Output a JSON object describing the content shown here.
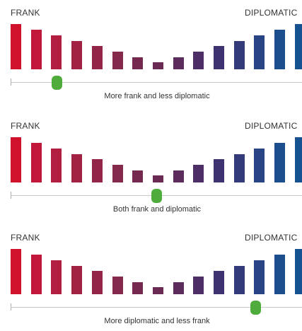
{
  "labels": {
    "left": "FRANK",
    "right": "DIPLOMATIC"
  },
  "bar_colors": [
    "#d0122c",
    "#c0173a",
    "#b11e3f",
    "#a22244",
    "#922548",
    "#84284c",
    "#76294f",
    "#6a2a54",
    "#5c2c5c",
    "#4e2e66",
    "#3f3270",
    "#333b7a",
    "#284484",
    "#1c4d8c",
    "#165292"
  ],
  "bar_levels": [
    1.0,
    0.87,
    0.75,
    0.63,
    0.51,
    0.39,
    0.27,
    0.15,
    0.27,
    0.39,
    0.51,
    0.63,
    0.75,
    0.87,
    1.0
  ],
  "handle_color": "#4fac3c",
  "panels": [
    {
      "caption": "More frank and less diplomatic",
      "slider_position": 0.16
    },
    {
      "caption": "Both frank and diplomatic",
      "slider_position": 0.5
    },
    {
      "caption": "More diplomatic and less frank",
      "slider_position": 0.84
    }
  ]
}
